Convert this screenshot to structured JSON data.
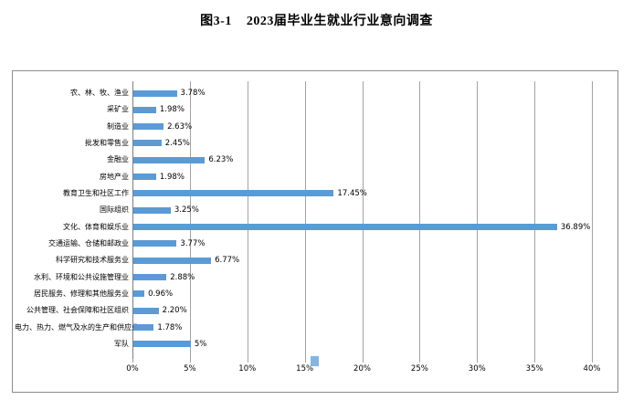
{
  "title": "图3-1    2023届毕业生就业行业意向调查",
  "colors": {
    "bar": "#5B9BD5",
    "gridline": "#a3a3a3",
    "axis": "#7f7f7f",
    "frame_border": "#8c8c8c",
    "artifact": "#6fa8dc"
  },
  "chart_data": {
    "type": "bar",
    "orientation": "horizontal",
    "title": "图3-1    2023届毕业生就业行业意向调查",
    "categories": [
      "农、林、牧、渔业",
      "采矿业",
      "制造业",
      "批发和零售业",
      "金融业",
      "房地产业",
      "教育卫生和社区工作",
      "国际组织",
      "文化、体育和娱乐业",
      "交通运输、仓储和邮政业",
      "科学研究和技术服务业",
      "水利、环境和公共设施管理业",
      "居民服务、修理和其他服务业",
      "公共管理、社会保障和社区组织",
      "电力、热力、燃气及水的生产和供应业",
      "军队"
    ],
    "values": [
      3.78,
      1.98,
      2.63,
      2.45,
      6.23,
      1.98,
      17.45,
      3.25,
      36.89,
      3.77,
      6.77,
      2.88,
      0.96,
      2.2,
      1.78,
      5
    ],
    "value_labels": [
      "3.78%",
      "1.98%",
      "2.63%",
      "2.45%",
      "6.23%",
      "1.98%",
      "17.45%",
      "3.25%",
      "36.89%",
      "3.77%",
      "6.77%",
      "2.88%",
      "0.96%",
      "2.20%",
      "1.78%",
      "5%"
    ],
    "x_ticks": [
      "0%",
      "5%",
      "10%",
      "15%",
      "20%",
      "25%",
      "30%",
      "35%",
      "40%"
    ],
    "x_tick_values": [
      0,
      5,
      10,
      15,
      20,
      25,
      30,
      35,
      40
    ],
    "xlim": [
      0,
      40
    ],
    "xlabel": "",
    "ylabel": "",
    "grid": true,
    "legend": "none"
  }
}
